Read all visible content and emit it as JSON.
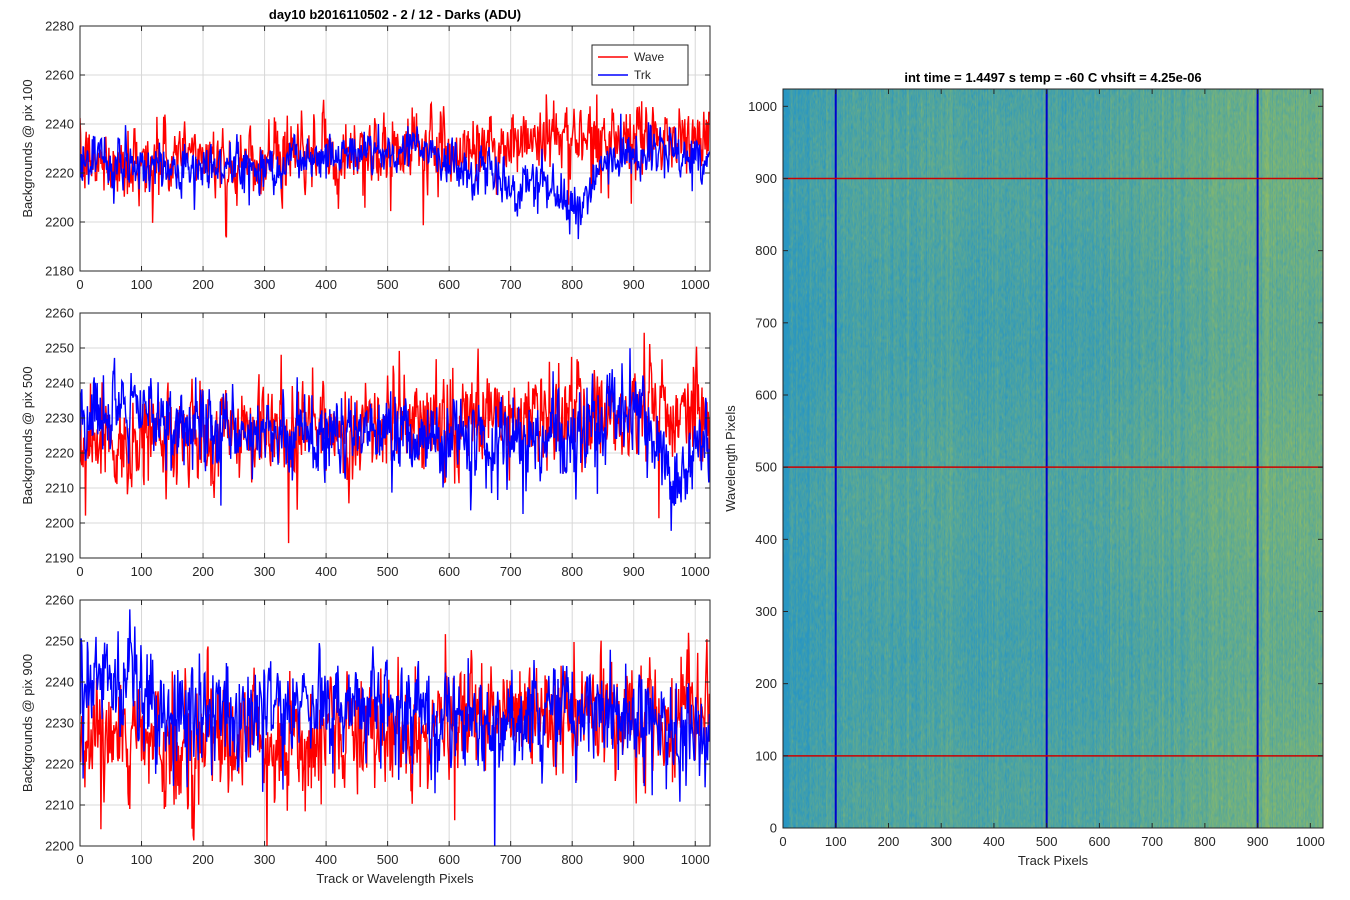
{
  "chart_data": [
    {
      "type": "line",
      "title": "day10 b2016110502 - 2 / 12 - Darks (ADU)",
      "xlabel": "",
      "ylabel": "Backgrounds @ pix 100",
      "xlim": [
        0,
        1024
      ],
      "ylim": [
        2180,
        2280
      ],
      "xticks": [
        0,
        100,
        200,
        300,
        400,
        500,
        600,
        700,
        800,
        900,
        1000
      ],
      "yticks": [
        2180,
        2200,
        2220,
        2240,
        2260,
        2280
      ],
      "grid": true,
      "legend": "top-right",
      "series": [
        {
          "name": "Wave",
          "color": "#ff0000",
          "points": 1024,
          "trend_x": [
            0,
            150,
            200,
            300,
            400,
            500,
            600,
            700,
            750,
            800,
            900,
            1024
          ],
          "trend_y": [
            2224,
            2226,
            2228,
            2225,
            2228,
            2230,
            2230,
            2231,
            2236,
            2236,
            2234,
            2233
          ],
          "noise": 7
        },
        {
          "name": "Trk",
          "color": "#0000ff",
          "points": 1024,
          "trend_x": [
            0,
            100,
            200,
            300,
            400,
            500,
            550,
            600,
            650,
            700,
            750,
            800,
            850,
            900,
            1024
          ],
          "trend_y": [
            2225,
            2223,
            2222,
            2223,
            2228,
            2229,
            2232,
            2224,
            2221,
            2215,
            2218,
            2204,
            2222,
            2229,
            2226
          ],
          "noise": 5
        }
      ]
    },
    {
      "type": "line",
      "title": "",
      "xlabel": "",
      "ylabel": "Backgrounds @ pix 500",
      "xlim": [
        0,
        1024
      ],
      "ylim": [
        2190,
        2260
      ],
      "xticks": [
        0,
        100,
        200,
        300,
        400,
        500,
        600,
        700,
        800,
        900,
        1000
      ],
      "yticks": [
        2190,
        2200,
        2210,
        2220,
        2230,
        2240,
        2250,
        2260
      ],
      "grid": true,
      "series": [
        {
          "name": "Wave",
          "color": "#ff0000",
          "points": 1024,
          "trend_x": [
            0,
            200,
            400,
            600,
            800,
            1024
          ],
          "trend_y": [
            2223,
            2225,
            2227,
            2229,
            2231,
            2233
          ],
          "noise": 7
        },
        {
          "name": "Trk",
          "color": "#0000ff",
          "points": 1024,
          "trend_x": [
            0,
            100,
            200,
            300,
            400,
            500,
            600,
            700,
            800,
            900,
            960,
            1024
          ],
          "trend_y": [
            2228,
            2231,
            2228,
            2227,
            2226,
            2225,
            2224,
            2222,
            2226,
            2233,
            2210,
            2225
          ],
          "noise": 6
        }
      ]
    },
    {
      "type": "line",
      "title": "",
      "xlabel": "Track or Wavelength Pixels",
      "ylabel": "Backgrounds @ pix 900",
      "xlim": [
        0,
        1024
      ],
      "ylim": [
        2200,
        2260
      ],
      "xticks": [
        0,
        100,
        200,
        300,
        400,
        500,
        600,
        700,
        800,
        900,
        1000
      ],
      "yticks": [
        2200,
        2210,
        2220,
        2230,
        2240,
        2250,
        2260
      ],
      "grid": true,
      "series": [
        {
          "name": "Wave",
          "color": "#ff0000",
          "points": 1024,
          "trend_x": [
            0,
            200,
            400,
            600,
            800,
            1024
          ],
          "trend_y": [
            2224,
            2226,
            2227,
            2229,
            2231,
            2232
          ],
          "noise": 7
        },
        {
          "name": "Trk",
          "color": "#0000ff",
          "points": 1024,
          "trend_x": [
            0,
            50,
            150,
            250,
            350,
            450,
            550,
            650,
            750,
            850,
            1024
          ],
          "trend_y": [
            2236,
            2241,
            2232,
            2233,
            2234,
            2236,
            2232,
            2230,
            2232,
            2233,
            2226
          ],
          "noise": 6
        }
      ]
    },
    {
      "type": "heatmap",
      "title": "int time = 1.4497 s    temp = -60 C    vhsift = 4.25e-06",
      "xlabel": "Track Pixels",
      "ylabel": "Wavelength Pixels",
      "xlim": [
        0,
        1024
      ],
      "ylim": [
        0,
        1024
      ],
      "xticks": [
        0,
        100,
        200,
        300,
        400,
        500,
        600,
        700,
        800,
        900,
        1000
      ],
      "yticks": [
        0,
        100,
        200,
        300,
        400,
        500,
        600,
        700,
        800,
        900,
        1000
      ],
      "colormap": "parula",
      "vertical_lines": {
        "color": "#0000cc",
        "x": [
          100,
          500,
          900
        ]
      },
      "horizontal_lines": {
        "color": "#cc0000",
        "y": [
          100,
          500,
          900
        ]
      }
    }
  ]
}
